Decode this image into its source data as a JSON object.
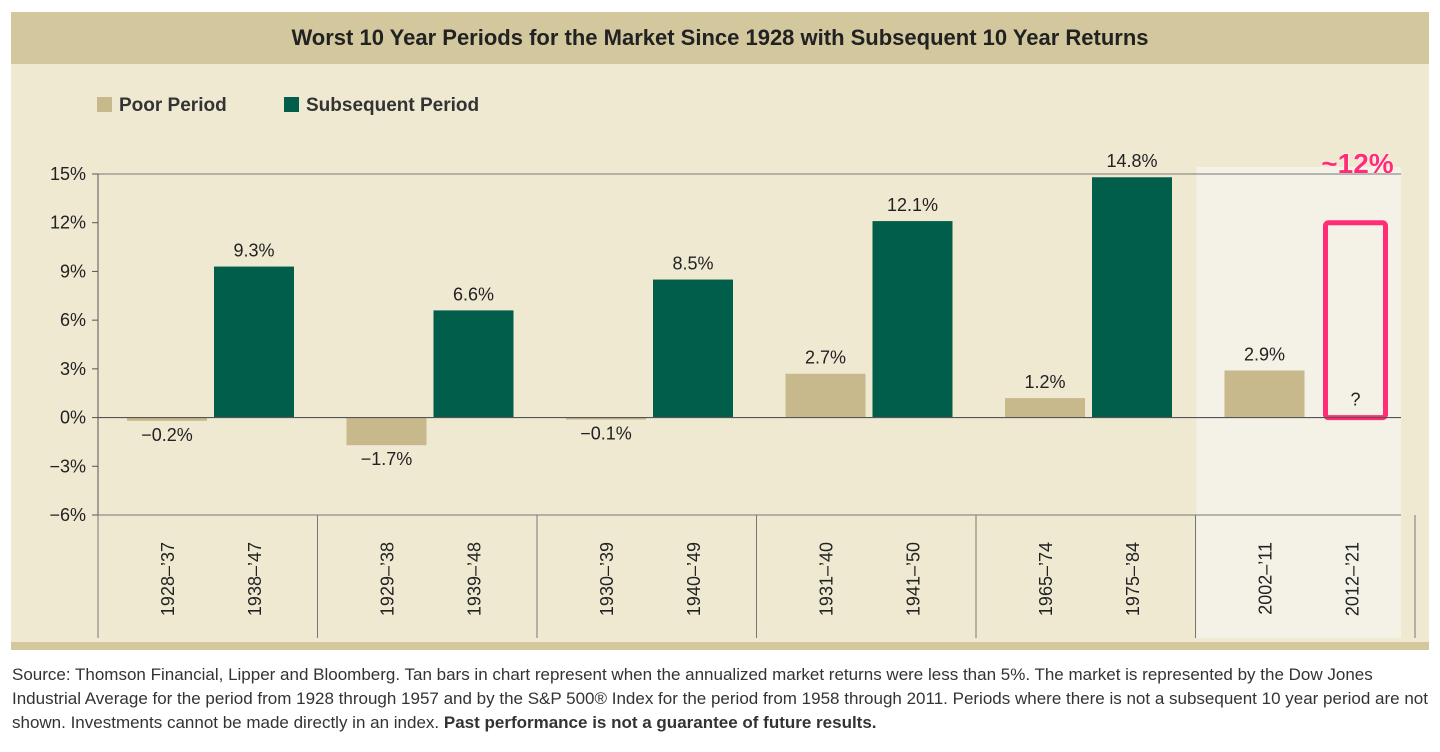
{
  "title": "Worst 10 Year Periods for the Market Since 1928 with Subsequent 10 Year Returns",
  "colors": {
    "poor": "#c8b98c",
    "subsequent": "#005e4b",
    "highlight_bg": "#f4f1e6",
    "annotation": "#ff2d75"
  },
  "chart_data": {
    "type": "bar",
    "title": "Worst 10 Year Periods for the Market Since 1928 with Subsequent 10 Year Returns",
    "legend": [
      "Poor Period",
      "Subsequent Period"
    ],
    "legend_placement": "top-left",
    "ylim": [
      -6,
      15
    ],
    "yticks": [
      "15%",
      "12%",
      "9%",
      "6%",
      "3%",
      "0%",
      "−3%",
      "−6%"
    ],
    "ytick_values": [
      15,
      12,
      9,
      6,
      3,
      0,
      -3,
      -6
    ],
    "groups": [
      {
        "poor": {
          "period": "1928–’37",
          "value": -0.2,
          "label": "−0.2%"
        },
        "subsequent": {
          "period": "1938–’47",
          "value": 9.3,
          "label": "9.3%"
        }
      },
      {
        "poor": {
          "period": "1929–’38",
          "value": -1.7,
          "label": "−1.7%"
        },
        "subsequent": {
          "period": "1939–’48",
          "value": 6.6,
          "label": "6.6%"
        }
      },
      {
        "poor": {
          "period": "1930–’39",
          "value": -0.1,
          "label": "−0.1%"
        },
        "subsequent": {
          "period": "1940–’49",
          "value": 8.5,
          "label": "8.5%"
        }
      },
      {
        "poor": {
          "period": "1931–’40",
          "value": 2.7,
          "label": "2.7%"
        },
        "subsequent": {
          "period": "1941–’50",
          "value": 12.1,
          "label": "12.1%"
        }
      },
      {
        "poor": {
          "period": "1965–’74",
          "value": 1.2,
          "label": "1.2%"
        },
        "subsequent": {
          "period": "1975–’84",
          "value": 14.8,
          "label": "14.8%"
        }
      },
      {
        "poor": {
          "period": "2002–’11",
          "value": 2.9,
          "label": "2.9%"
        },
        "subsequent": {
          "period": "2012–’21",
          "value": null,
          "label": "?",
          "annotated_estimate": 12,
          "annotation": "~12%"
        }
      }
    ]
  },
  "footnote": {
    "text": "Source: Thomson Financial, Lipper and Bloomberg. Tan bars in chart represent when the annualized market returns were less than 5%. The market is represented by the Dow Jones Industrial Average for the period from 1928 through 1957 and by the S&P 500® Index for the period from 1958 through 2011. Periods where there is not a subsequent 10 year period are not shown. Investments cannot be made directly in an index. ",
    "bold": "Past performance is not a guarantee of future results."
  }
}
